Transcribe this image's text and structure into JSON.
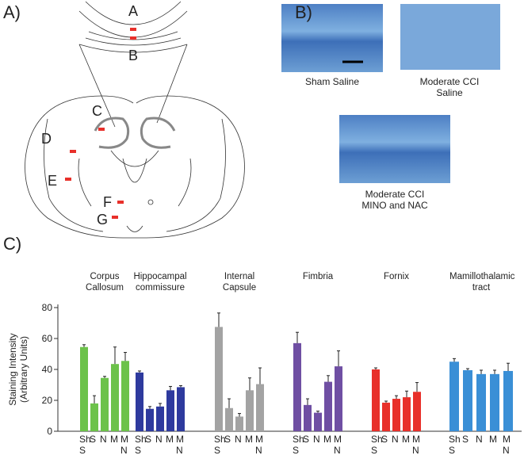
{
  "panel_labels": [
    "A)",
    "B)",
    "C)"
  ],
  "diagram": {
    "region_labels": [
      "A",
      "B",
      "C",
      "D",
      "E",
      "F",
      "G"
    ]
  },
  "images": [
    {
      "caption": "Sham Saline"
    },
    {
      "caption": "Moderate CCI Saline"
    },
    {
      "caption": "Moderate CCI MINO and NAC"
    }
  ],
  "chart_data": {
    "type": "bar",
    "ylabel": "Staining Intensity (Arbitrary Units)",
    "categories": [
      "Sh S",
      "S",
      "N",
      "M",
      "M N"
    ],
    "series": [
      {
        "name": "Corpus Callosum",
        "color": "#6cc24a",
        "values": [
          54.5,
          18,
          34.5,
          43.5,
          45.5
        ],
        "errors": [
          1.5,
          5,
          1,
          11,
          5.5
        ]
      },
      {
        "name": "Hippocampal commissure",
        "color": "#2e3a9e",
        "values": [
          38,
          14.5,
          16,
          26.5,
          28.5
        ],
        "errors": [
          1,
          1.5,
          2,
          2.5,
          1
        ]
      },
      {
        "name": "Internal Capsule",
        "color": "#a3a3a3",
        "values": [
          67.5,
          15,
          9.5,
          26.5,
          30.5
        ],
        "errors": [
          9,
          6,
          2,
          8,
          10.5
        ]
      },
      {
        "name": "Fimbria",
        "color": "#6f4fa3",
        "values": [
          57,
          17,
          12,
          32,
          42
        ],
        "errors": [
          7,
          4,
          1,
          4,
          10
        ]
      },
      {
        "name": "Fornix",
        "color": "#e8302a",
        "values": [
          40,
          18.5,
          21,
          22,
          25.5
        ],
        "errors": [
          1,
          1,
          2,
          4,
          6
        ]
      },
      {
        "name": "Mamillothalamic tract",
        "color": "#3a8fd6",
        "values": [
          45,
          39.5,
          37,
          37,
          39
        ],
        "errors": [
          2,
          1,
          2.5,
          2.5,
          5
        ]
      }
    ],
    "ylim": [
      0,
      80
    ],
    "yticks": [
      0,
      20,
      40,
      60,
      80
    ]
  }
}
